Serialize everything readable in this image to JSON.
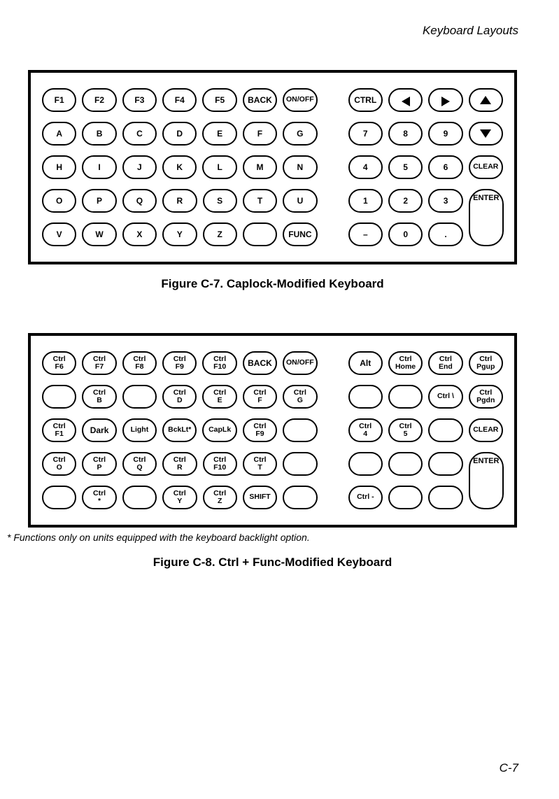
{
  "page": {
    "header": "Keyboard Layouts",
    "footer": "C-7"
  },
  "kb1": {
    "caption": "Figure C-7.  Caplock-Modified Keyboard",
    "rows": [
      [
        "F1",
        "F2",
        "F3",
        "F4",
        "F5",
        "BACK",
        "ON/OFF",
        "__GAP__",
        "CTRL",
        "__ARROW_L__",
        "__ARROW_R__",
        "__ARROW_U__"
      ],
      [
        "A",
        "B",
        "C",
        "D",
        "E",
        "F",
        "G",
        "__GAP__",
        "7",
        "8",
        "9",
        "__ARROW_D__"
      ],
      [
        "H",
        "I",
        "J",
        "K",
        "L",
        "M",
        "N",
        "__GAP__",
        "4",
        "5",
        "6",
        "CLEAR"
      ],
      [
        "O",
        "P",
        "Q",
        "R",
        "S",
        "T",
        "U",
        "__GAP__",
        "1",
        "2",
        "3",
        "__ENTER_START__"
      ],
      [
        "V",
        "W",
        "X",
        "Y",
        "Z",
        "",
        "FUNC",
        "__GAP__",
        "–",
        "0",
        ".",
        "__ENTER_CONT__"
      ]
    ],
    "enter_label": "ENTER"
  },
  "kb2": {
    "caption": "Figure C-8.  Ctrl + Func-Modified Keyboard",
    "footnote": "* Functions only on units equipped with the keyboard backlight option.",
    "rows": [
      [
        [
          "Ctrl",
          "F6"
        ],
        [
          "Ctrl",
          "F7"
        ],
        [
          "Ctrl",
          "F8"
        ],
        [
          "Ctrl",
          "F9"
        ],
        [
          "Ctrl",
          "F10"
        ],
        "BACK",
        "ON/OFF",
        "__GAP__",
        "Alt",
        [
          "Ctrl",
          "Home"
        ],
        [
          "Ctrl",
          "End"
        ],
        [
          "Ctrl",
          "Pgup"
        ]
      ],
      [
        "",
        [
          "Ctrl",
          "B"
        ],
        "",
        [
          "Ctrl",
          "D"
        ],
        [
          "Ctrl",
          "E"
        ],
        [
          "Ctrl",
          "F"
        ],
        [
          "Ctrl",
          "G"
        ],
        "__GAP__",
        "",
        "",
        "Ctrl \\",
        [
          "Ctrl",
          "Pgdn"
        ]
      ],
      [
        [
          "Ctrl",
          "F1"
        ],
        "Dark",
        "Light",
        "BckLt*",
        "CapLk",
        [
          "Ctrl",
          "F9"
        ],
        "",
        "__GAP__",
        [
          "Ctrl",
          "4"
        ],
        [
          "Ctrl",
          "5"
        ],
        "",
        "CLEAR"
      ],
      [
        [
          "Ctrl",
          "O"
        ],
        [
          "Ctrl",
          "P"
        ],
        [
          "Ctrl",
          "Q"
        ],
        [
          "Ctrl",
          "R"
        ],
        [
          "Ctrl",
          "F10"
        ],
        [
          "Ctrl",
          "T"
        ],
        "",
        "__GAP__",
        "",
        "",
        "",
        "__ENTER_START__"
      ],
      [
        "",
        [
          "Ctrl",
          "*"
        ],
        "",
        [
          "Ctrl",
          "Y"
        ],
        [
          "Ctrl",
          "Z"
        ],
        "SHIFT",
        "",
        "__GAP__",
        "Ctrl -",
        "",
        "",
        "__ENTER_CONT__"
      ]
    ],
    "enter_label": "ENTER"
  },
  "style": {
    "border_color": "#000000",
    "bg": "#ffffff",
    "key_border_radius": 18,
    "key_w": 50,
    "key_h": 34
  }
}
